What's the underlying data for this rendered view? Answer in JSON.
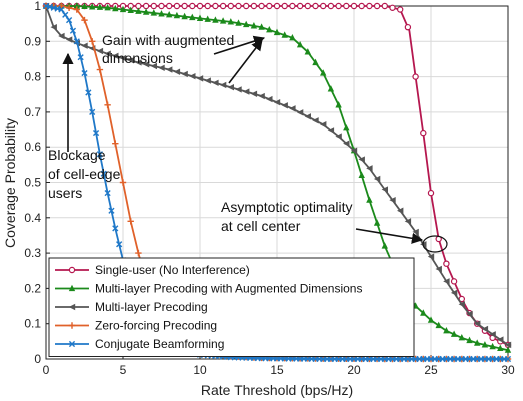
{
  "chart_data": {
    "type": "line",
    "title": "",
    "xlabel": "Rate Threshold (bps/Hz)",
    "ylabel": "Coverage Probability",
    "xlim": [
      0,
      30
    ],
    "ylim": [
      0,
      1
    ],
    "xticks": [
      0,
      5,
      10,
      15,
      20,
      25,
      30
    ],
    "yticks": [
      0,
      0.1,
      0.2,
      0.3,
      0.4,
      0.5,
      0.6,
      0.7,
      0.8,
      0.9,
      1
    ],
    "grid": true,
    "legend_position": "bottom-left",
    "series": [
      {
        "name": "Single-user (No Interference)",
        "color": "#b5174f",
        "marker": "circle-open",
        "x": [
          0,
          22,
          23,
          23.6,
          24,
          24.5,
          25,
          25.5,
          26,
          26.5,
          27,
          27.5,
          28,
          28.5,
          29,
          29.5,
          30
        ],
        "y": [
          1,
          1,
          0.99,
          0.93,
          0.8,
          0.64,
          0.47,
          0.34,
          0.27,
          0.22,
          0.17,
          0.13,
          0.1,
          0.08,
          0.06,
          0.05,
          0.04
        ]
      },
      {
        "name": "Multi-layer Precoding with Augmented Dimensions",
        "color": "#1b8a1b",
        "marker": "triangle-up",
        "x": [
          0,
          2,
          4,
          6,
          8,
          10,
          12,
          14,
          16,
          17,
          18,
          19,
          20,
          21,
          22,
          23,
          24,
          25,
          26,
          27,
          28,
          29,
          30
        ],
        "y": [
          1,
          1,
          0.995,
          0.985,
          0.975,
          0.965,
          0.955,
          0.94,
          0.91,
          0.87,
          0.81,
          0.72,
          0.59,
          0.45,
          0.32,
          0.22,
          0.15,
          0.11,
          0.08,
          0.06,
          0.045,
          0.035,
          0.025
        ]
      },
      {
        "name": "Multi-layer Precoding",
        "color": "#555555",
        "marker": "triangle-left",
        "x": [
          0,
          0.5,
          1,
          2,
          4,
          6,
          8,
          10,
          12,
          14,
          16,
          18,
          19,
          20,
          21,
          22,
          23,
          24,
          25,
          26,
          27,
          28,
          29,
          30
        ],
        "y": [
          1,
          0.94,
          0.915,
          0.895,
          0.865,
          0.84,
          0.82,
          0.795,
          0.77,
          0.745,
          0.71,
          0.665,
          0.63,
          0.59,
          0.54,
          0.48,
          0.42,
          0.36,
          0.29,
          0.22,
          0.155,
          0.1,
          0.07,
          0.04
        ]
      },
      {
        "name": "Zero-forcing Precoding",
        "color": "#e0612a",
        "marker": "plus",
        "x": [
          0,
          1,
          2,
          2.5,
          3,
          3.5,
          4,
          4.5,
          5,
          5.5,
          6,
          6.5,
          7,
          7.5,
          8,
          9,
          10,
          12,
          14,
          18,
          22,
          26,
          30
        ],
        "y": [
          1,
          1,
          0.99,
          0.96,
          0.9,
          0.82,
          0.72,
          0.61,
          0.5,
          0.39,
          0.3,
          0.22,
          0.16,
          0.11,
          0.075,
          0.04,
          0.02,
          0.008,
          0.003,
          0.001,
          0,
          0,
          0
        ]
      },
      {
        "name": "Conjugate Beamforming",
        "color": "#1f78c8",
        "marker": "x-cross",
        "x": [
          0,
          1,
          1.5,
          2,
          2.5,
          3,
          3.5,
          4,
          4.5,
          5,
          5.5,
          6,
          6.5,
          7,
          7.5,
          8,
          9,
          10,
          12,
          14,
          16,
          18,
          20,
          22,
          24,
          26,
          28,
          30
        ],
        "y": [
          1,
          0.99,
          0.96,
          0.9,
          0.81,
          0.7,
          0.58,
          0.47,
          0.37,
          0.28,
          0.2,
          0.14,
          0.1,
          0.07,
          0.05,
          0.035,
          0.02,
          0.012,
          0.005,
          0.002,
          0.001,
          0,
          0,
          0,
          0,
          0,
          0,
          0
        ]
      }
    ],
    "annotations": [
      {
        "lines": [
          "Gain with augmented",
          "dimensions"
        ]
      },
      {
        "lines": [
          "Blockage",
          "of cell-edge",
          "users"
        ]
      },
      {
        "lines": [
          "Asymptotic optimality",
          "at cell center"
        ]
      }
    ]
  }
}
